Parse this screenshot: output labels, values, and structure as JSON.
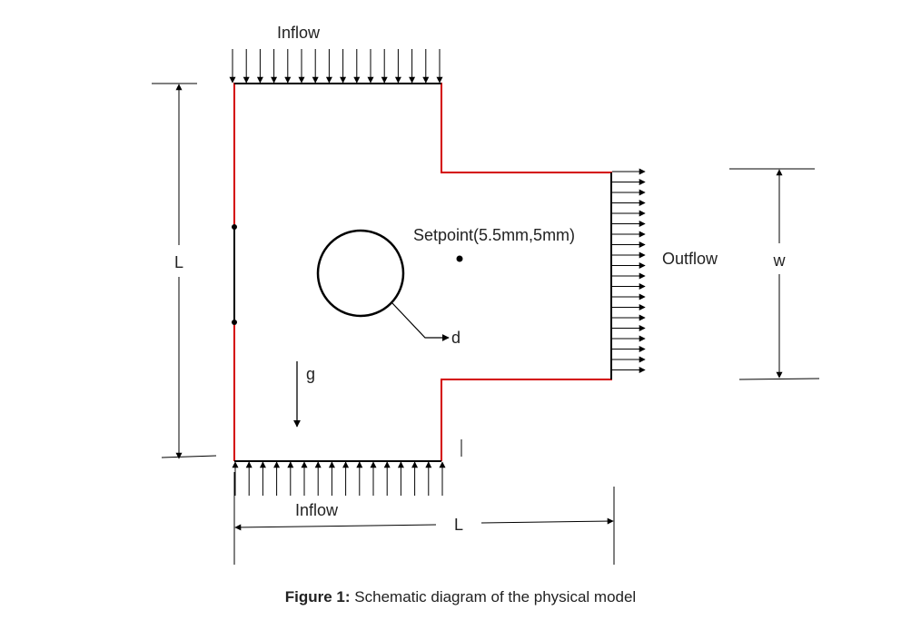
{
  "labels": {
    "inflow_top": "Inflow",
    "inflow_bottom": "Inflow",
    "outflow": "Outflow",
    "setpoint": "Setpoint(5.5mm,5mm)",
    "length_left": "L",
    "length_bottom": "L",
    "width": "w",
    "diameter": "d",
    "gravity": "g"
  },
  "caption": {
    "prefix": "Figure 1:",
    "text": " Schematic diagram of the physical model"
  },
  "colors": {
    "wall": "#d40000",
    "line": "#000000",
    "text": "#222222"
  }
}
